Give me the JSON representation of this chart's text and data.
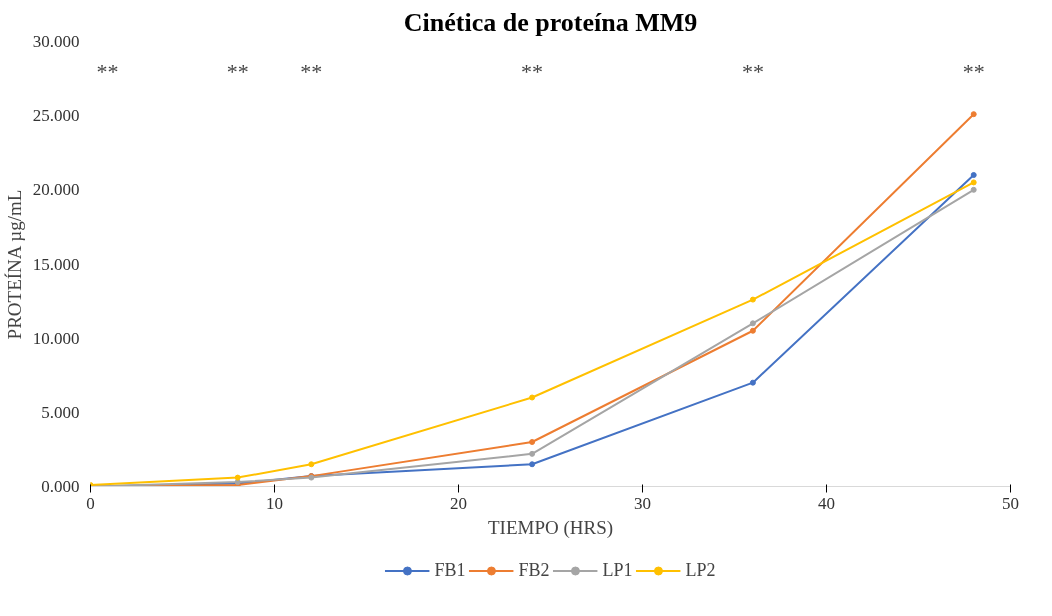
{
  "chart_data": {
    "type": "line",
    "title": "Cinética de proteína MM9",
    "xlabel": "TIEMPO (HRS)",
    "ylabel": "PROTEÍNA µg/mL",
    "x": [
      0,
      8,
      12,
      24,
      36,
      48
    ],
    "series": [
      {
        "name": "FB1",
        "color": "#4472c4",
        "values": [
          0.0,
          0.2,
          0.7,
          1.5,
          7.0,
          21.0
        ]
      },
      {
        "name": "FB2",
        "color": "#ed7d31",
        "values": [
          0.0,
          0.1,
          0.7,
          3.0,
          10.5,
          25.1
        ]
      },
      {
        "name": "LP1",
        "color": "#a5a5a5",
        "values": [
          0.0,
          0.3,
          0.6,
          2.2,
          11.0,
          20.0
        ]
      },
      {
        "name": "LP2",
        "color": "#ffc000",
        "values": [
          0.1,
          0.6,
          1.5,
          6.0,
          12.6,
          20.5
        ]
      }
    ],
    "xlim": [
      0,
      50
    ],
    "xticks": [
      0,
      10,
      20,
      30,
      40,
      50
    ],
    "ylim": [
      0,
      30
    ],
    "yticks": [
      {
        "value": 0,
        "label": "0.000"
      },
      {
        "value": 5,
        "label": "5.000"
      },
      {
        "value": 10,
        "label": "10.000"
      },
      {
        "value": 15,
        "label": "15.000"
      },
      {
        "value": 20,
        "label": "20.000"
      },
      {
        "value": 25,
        "label": "25.000"
      },
      {
        "value": 30,
        "label": "30.000"
      }
    ],
    "annotations": [
      "**",
      "**",
      "**",
      "**",
      "**",
      "**"
    ],
    "legend": "bottom",
    "grid": false,
    "marker": "circle",
    "line_style": "solid"
  }
}
